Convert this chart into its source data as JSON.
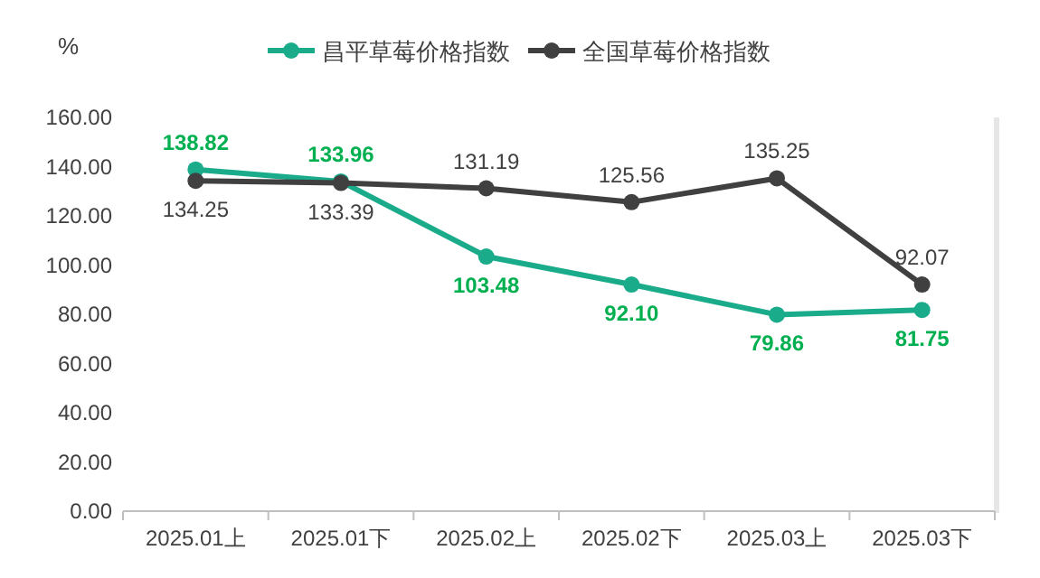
{
  "chart_data": {
    "type": "line",
    "ylabel": "%",
    "categories": [
      "2025.01上",
      "2025.01下",
      "2025.02上",
      "2025.02下",
      "2025.03上",
      "2025.03下"
    ],
    "series": [
      {
        "name": "昌平草莓价格指数",
        "color": "#1aab8a",
        "values": [
          138.82,
          133.96,
          103.48,
          92.1,
          79.86,
          81.75
        ],
        "value_labels": [
          "138.82",
          "133.96",
          "103.48",
          "92.10",
          "79.86",
          "81.75"
        ]
      },
      {
        "name": "全国草莓价格指数",
        "color": "#404040",
        "values": [
          134.25,
          133.39,
          131.19,
          125.56,
          135.25,
          92.07
        ],
        "value_labels": [
          "134.25",
          "133.39",
          "131.19",
          "125.56",
          "135.25",
          "92.07"
        ]
      }
    ],
    "ylim": [
      0,
      160
    ],
    "yticks": [
      {
        "value": 0,
        "label": "0.00"
      },
      {
        "value": 20,
        "label": "20.00"
      },
      {
        "value": 40,
        "label": "40.00"
      },
      {
        "value": 60,
        "label": "60.00"
      },
      {
        "value": 80,
        "label": "80.00"
      },
      {
        "value": 100,
        "label": "100.00"
      },
      {
        "value": 120,
        "label": "120.00"
      },
      {
        "value": 140,
        "label": "140.00"
      },
      {
        "value": 160,
        "label": "160.00"
      }
    ],
    "legend": "top",
    "grid": false,
    "marker": "circle",
    "line_style": "solid"
  }
}
